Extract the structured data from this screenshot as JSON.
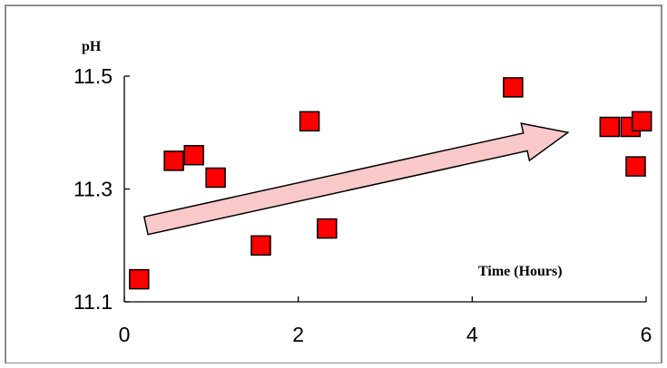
{
  "chart_data": {
    "type": "scatter",
    "ylabel": "pH",
    "xlabel": "Time (Hours)",
    "xlim": [
      0,
      6
    ],
    "ylim": [
      11.1,
      11.5
    ],
    "x_ticks": [
      "0",
      "2",
      "4",
      "6"
    ],
    "y_ticks": [
      "11.1",
      "11.3",
      "11.5"
    ],
    "grid": false,
    "legend": "none",
    "marker_color": "#ff0000",
    "marker_edge_color": "#000000",
    "points": [
      {
        "x": 0.17,
        "y": 11.14
      },
      {
        "x": 0.57,
        "y": 11.35
      },
      {
        "x": 0.8,
        "y": 11.36
      },
      {
        "x": 1.05,
        "y": 11.32
      },
      {
        "x": 1.57,
        "y": 11.2
      },
      {
        "x": 2.13,
        "y": 11.42
      },
      {
        "x": 2.33,
        "y": 11.23
      },
      {
        "x": 4.47,
        "y": 11.48
      },
      {
        "x": 5.58,
        "y": 11.41
      },
      {
        "x": 5.82,
        "y": 11.41
      },
      {
        "x": 5.88,
        "y": 11.34
      },
      {
        "x": 5.95,
        "y": 11.42
      }
    ],
    "trend_arrow": {
      "from": {
        "x": 0.25,
        "y": 11.235
      },
      "to": {
        "x": 5.1,
        "y": 11.4
      },
      "fill": "#f9c9c9",
      "stroke": "#000000"
    }
  }
}
